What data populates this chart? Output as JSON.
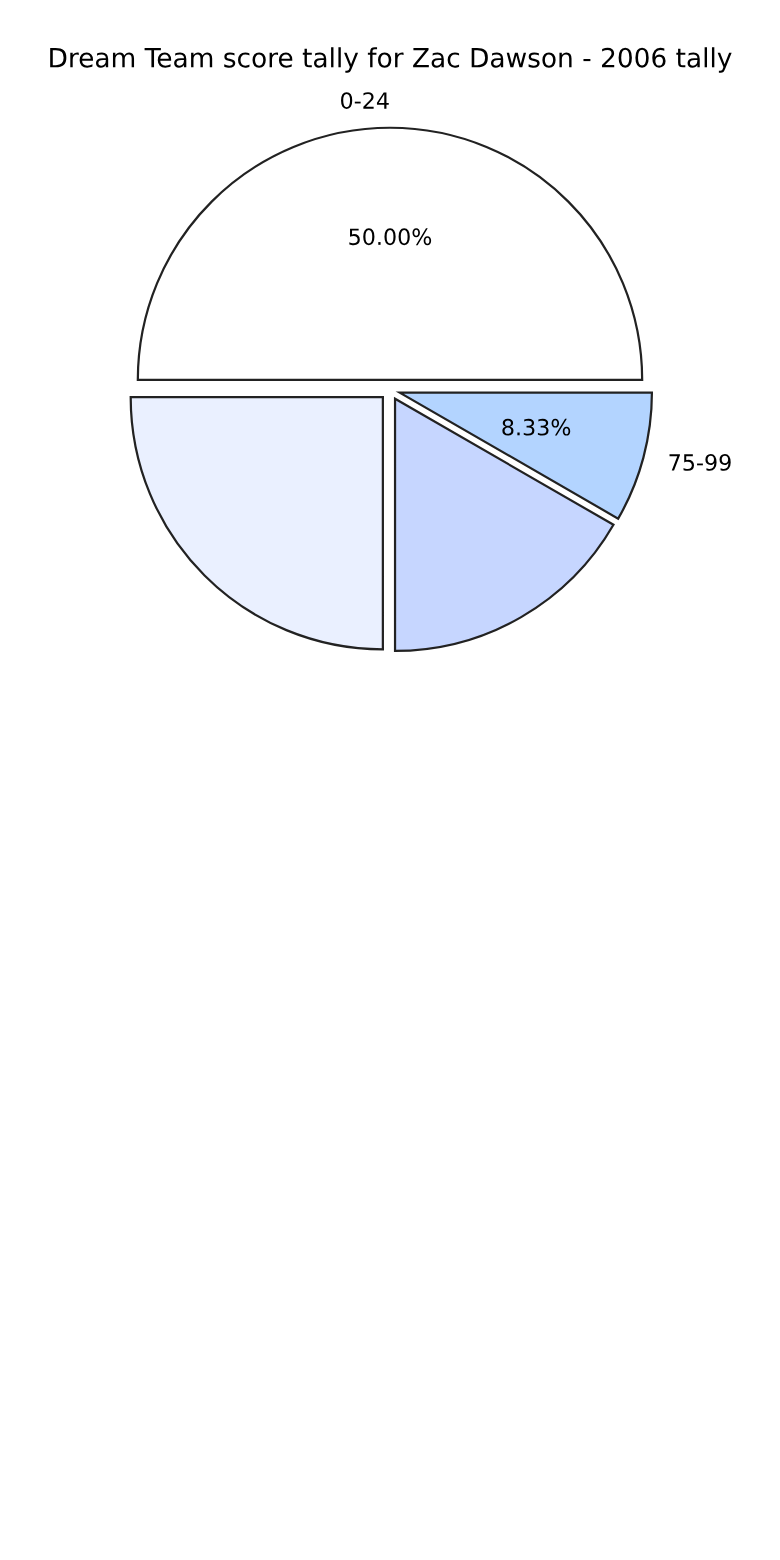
{
  "chart_data": {
    "type": "pie",
    "title": "Dream Team score tally for Zac Dawson - 2006 tally",
    "categories": [
      "0-24",
      null,
      null,
      "75-99"
    ],
    "values": [
      50,
      25,
      16.67,
      8.33
    ],
    "colors": [
      "#ffffff",
      "#eaf0ff",
      "#c6d6ff",
      "#b3d4ff"
    ],
    "value_labels": [
      "50.00%",
      null,
      null,
      "8.33%"
    ]
  }
}
